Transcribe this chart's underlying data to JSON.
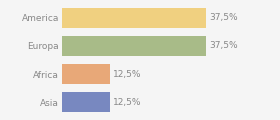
{
  "categories": [
    "America",
    "Europa",
    "Africa",
    "Asia"
  ],
  "values": [
    37.5,
    37.5,
    12.5,
    12.5
  ],
  "bar_colors": [
    "#f0d080",
    "#a8bb88",
    "#e8a878",
    "#7888c0"
  ],
  "labels": [
    "37,5%",
    "37,5%",
    "12,5%",
    "12,5%"
  ],
  "background_color": "#f5f5f5",
  "xlim": [
    0,
    48
  ],
  "text_color": "#888888",
  "label_fontsize": 6.5,
  "tick_fontsize": 6.5,
  "bar_height": 0.72
}
